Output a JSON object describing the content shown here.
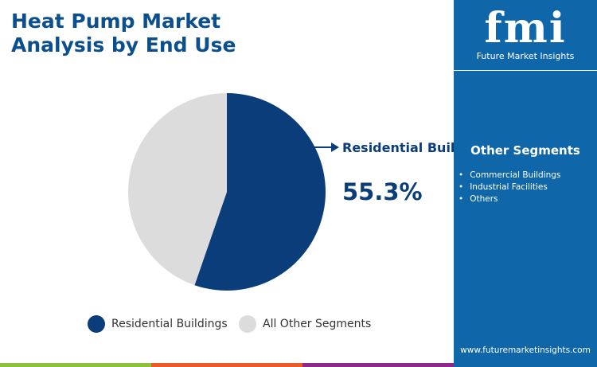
{
  "title": "Heat Pump Market Analysis by End Use",
  "chart_data": {
    "type": "pie",
    "title": "Heat Pump Market Analysis by End Use",
    "categories": [
      "Residential Buildings",
      "All Other Segments"
    ],
    "values": [
      55.3,
      44.7
    ],
    "colors": [
      "#0a3d7a",
      "#dcdcdc"
    ],
    "annotation": {
      "label": "Residential Buildings",
      "value": "55.3%"
    },
    "legend_position": "bottom"
  },
  "legend": [
    "Residential Buildings",
    "All Other Segments"
  ],
  "sidebar": {
    "logo_text": "fmi",
    "logo_sub": "Future Market Insights",
    "other_title": "Other Segments",
    "others": [
      "Commercial Buildings",
      "Industrial Facilities",
      "Others"
    ],
    "url": "www.futuremarketinsights.com"
  },
  "stripe_colors": [
    "#8dc03f",
    "#e85c2a",
    "#8b2a8a"
  ]
}
